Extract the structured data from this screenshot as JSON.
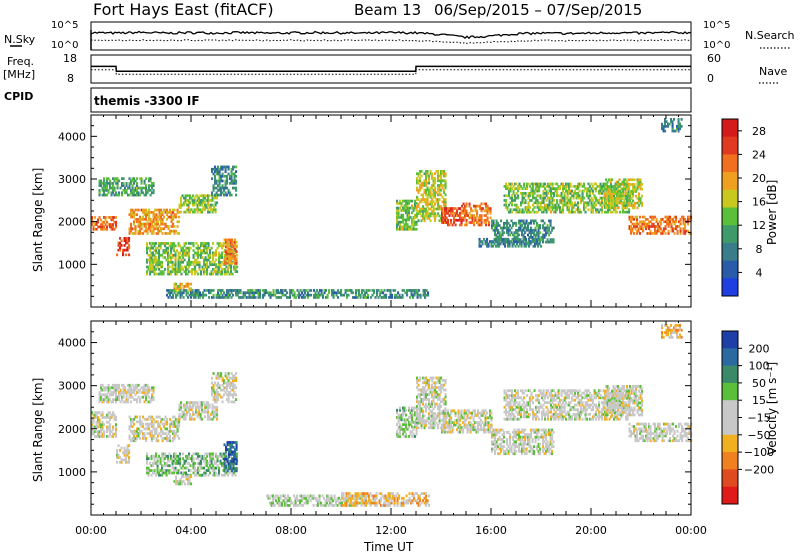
{
  "header": {
    "station": "Fort Hays East (fitACF)",
    "beam": "Beam 13",
    "dates": "06/Sep/2015 – 07/Sep/2015",
    "program": "themis -3300 IF"
  },
  "labels": {
    "nsky": "N.Sky",
    "nsearch": "N.Search",
    "freq": "Freq.",
    "freq_unit": "[MHz]",
    "nave": "Nave",
    "cpid": "CPID",
    "pow_exp_top": "10^5",
    "pow_exp_bot": "10^0"
  },
  "legend_colors": {
    "power": [
      "#1f3fe0",
      "#2a5ba8",
      "#3a7d8a",
      "#3f9a6a",
      "#5cbf3a",
      "#c8c81e",
      "#f0a020",
      "#f07020",
      "#e03a20",
      "#d41a1a"
    ],
    "velocity": [
      "#1f3fa8",
      "#2a6aa0",
      "#3a8a6a",
      "#5cbf3a",
      "#c8c8c8",
      "#c8c8c8",
      "#f0b020",
      "#f08020",
      "#e04a20",
      "#e01a1a"
    ]
  },
  "chart_data": [
    {
      "type": "line",
      "title": "N.Sky / N.Search",
      "ylabel": "N.Sky",
      "y2label": "N.Search",
      "ylim_text": [
        "10^0",
        "10^5"
      ],
      "x_hours": [
        0,
        1,
        2,
        3,
        4,
        5,
        6,
        7,
        8,
        9,
        10,
        11,
        12,
        13,
        14,
        15,
        16,
        17,
        18,
        19,
        20,
        21,
        22,
        23,
        24
      ],
      "series": [
        {
          "name": "N.Sky",
          "values": [
            0.62,
            0.6,
            0.63,
            0.6,
            0.62,
            0.61,
            0.62,
            0.6,
            0.61,
            0.62,
            0.61,
            0.6,
            0.62,
            0.61,
            0.55,
            0.45,
            0.5,
            0.58,
            0.6,
            0.59,
            0.6,
            0.62,
            0.6,
            0.62,
            0.62
          ]
        },
        {
          "name": "N.Search",
          "values": [
            0.35,
            0.34,
            0.35,
            0.34,
            0.35,
            0.34,
            0.35,
            0.34,
            0.35,
            0.34,
            0.35,
            0.34,
            0.35,
            0.34,
            0.3,
            0.25,
            0.28,
            0.32,
            0.34,
            0.33,
            0.34,
            0.35,
            0.34,
            0.35,
            0.35
          ]
        }
      ]
    },
    {
      "type": "line",
      "title": "Freq / Nave",
      "ylabel": "Freq. [MHz]",
      "y2label": "Nave",
      "yticks": [
        8,
        18
      ],
      "y2ticks": [
        0,
        60
      ],
      "x_hours": [
        0,
        1,
        1.01,
        12.99,
        13,
        24
      ],
      "series": [
        {
          "name": "Freq",
          "values": [
            14.2,
            14.2,
            12.0,
            12.0,
            14.2,
            14.2
          ]
        },
        {
          "name": "Nave",
          "values": [
            14,
            14,
            12,
            12,
            14,
            14
          ]
        }
      ]
    },
    {
      "type": "heatmap",
      "title": "Power",
      "ylabel": "Slant Range [km]",
      "xlabel": "Time UT",
      "xticks": [
        "00:00",
        "04:00",
        "08:00",
        "12:00",
        "16:00",
        "20:00",
        "00:00"
      ],
      "yticks": [
        1000,
        2000,
        3000,
        4000
      ],
      "ylim": [
        0,
        4500
      ],
      "xlim_hours": [
        0,
        24
      ],
      "colorbar_label": "Power [dB]",
      "colorbar_ticks": [
        4,
        8,
        12,
        16,
        20,
        24,
        28
      ],
      "colorbar_range": [
        0,
        30
      ],
      "bands": [
        {
          "t0": 0,
          "t1": 1.0,
          "r0": 1800,
          "r1": 2100,
          "v": 22
        },
        {
          "t0": 1.0,
          "t1": 1.5,
          "r0": 1200,
          "r1": 1600,
          "v": 26
        },
        {
          "t0": 1.5,
          "t1": 3.5,
          "r0": 1700,
          "r1": 2300,
          "v": 20
        },
        {
          "t0": 3.5,
          "t1": 5.0,
          "r0": 2200,
          "r1": 2600,
          "v": 14
        },
        {
          "t0": 0.3,
          "t1": 2.5,
          "r0": 2600,
          "r1": 3000,
          "v": 11
        },
        {
          "t0": 2.2,
          "t1": 5.8,
          "r0": 750,
          "r1": 1500,
          "v": 14
        },
        {
          "t0": 5.3,
          "t1": 5.8,
          "r0": 1000,
          "r1": 1600,
          "v": 22
        },
        {
          "t0": 3.3,
          "t1": 4.0,
          "r0": 350,
          "r1": 550,
          "v": 18
        },
        {
          "t0": 4.8,
          "t1": 5.8,
          "r0": 2600,
          "r1": 3300,
          "v": 9
        },
        {
          "t0": 12.2,
          "t1": 13.0,
          "r0": 1800,
          "r1": 2500,
          "v": 14
        },
        {
          "t0": 13.0,
          "t1": 14.2,
          "r0": 2000,
          "r1": 3200,
          "v": 16
        },
        {
          "t0": 14.0,
          "t1": 14.8,
          "r0": 1900,
          "r1": 2300,
          "v": 24
        },
        {
          "t0": 14.8,
          "t1": 16.0,
          "r0": 1900,
          "r1": 2400,
          "v": 22
        },
        {
          "t0": 16.0,
          "t1": 18.5,
          "r0": 1500,
          "r1": 2000,
          "v": 9
        },
        {
          "t0": 15.5,
          "t1": 18.0,
          "r0": 1400,
          "r1": 1600,
          "v": 8
        },
        {
          "t0": 16.5,
          "t1": 21.5,
          "r0": 2200,
          "r1": 2900,
          "v": 14
        },
        {
          "t0": 20.5,
          "t1": 22.0,
          "r0": 2300,
          "r1": 3000,
          "v": 16
        },
        {
          "t0": 21.5,
          "t1": 24.0,
          "r0": 1700,
          "r1": 2100,
          "v": 22
        },
        {
          "t0": 3.0,
          "t1": 13.5,
          "r0": 200,
          "r1": 400,
          "v": 9
        },
        {
          "t0": 22.8,
          "t1": 23.6,
          "r0": 4100,
          "r1": 4400,
          "v": 8
        }
      ]
    },
    {
      "type": "heatmap",
      "title": "Velocity",
      "ylabel": "Slant Range [km]",
      "xlabel": "Time UT",
      "xticks": [
        "00:00",
        "04:00",
        "08:00",
        "12:00",
        "16:00",
        "20:00",
        "00:00"
      ],
      "yticks": [
        1000,
        2000,
        3000,
        4000
      ],
      "ylim": [
        0,
        4500
      ],
      "xlim_hours": [
        0,
        24
      ],
      "colorbar_label": "Velocity [m s⁻¹]",
      "colorbar_ticks": [
        "200",
        "100",
        "50",
        "15",
        "−15",
        "−50",
        "−100",
        "−200"
      ],
      "colorbar_range": [
        -250,
        250
      ],
      "bands": [
        {
          "t0": 0,
          "t1": 1.0,
          "r0": 1800,
          "r1": 2400,
          "v": 0
        },
        {
          "t0": 1.0,
          "t1": 1.5,
          "r0": 1200,
          "r1": 1600,
          "v": 0
        },
        {
          "t0": 1.5,
          "t1": 3.5,
          "r0": 1700,
          "r1": 2300,
          "v": -5
        },
        {
          "t0": 3.5,
          "t1": 5.0,
          "r0": 2200,
          "r1": 2600,
          "v": 0
        },
        {
          "t0": 0.3,
          "t1": 2.5,
          "r0": 2600,
          "r1": 3000,
          "v": 5
        },
        {
          "t0": 2.2,
          "t1": 5.8,
          "r0": 900,
          "r1": 1400,
          "v": 60
        },
        {
          "t0": 5.3,
          "t1": 5.8,
          "r0": 1000,
          "r1": 1700,
          "v": 180
        },
        {
          "t0": 3.3,
          "t1": 4.0,
          "r0": 700,
          "r1": 900,
          "v": 0
        },
        {
          "t0": 4.8,
          "t1": 5.8,
          "r0": 2600,
          "r1": 3300,
          "v": 0
        },
        {
          "t0": 12.2,
          "t1": 13.0,
          "r0": 1800,
          "r1": 2500,
          "v": 40
        },
        {
          "t0": 13.0,
          "t1": 14.2,
          "r0": 2000,
          "r1": 3200,
          "v": 0
        },
        {
          "t0": 14.0,
          "t1": 16.0,
          "r0": 1900,
          "r1": 2400,
          "v": 0
        },
        {
          "t0": 16.0,
          "t1": 18.5,
          "r0": 1400,
          "r1": 2000,
          "v": 0
        },
        {
          "t0": 16.5,
          "t1": 21.5,
          "r0": 2200,
          "r1": 2900,
          "v": 0
        },
        {
          "t0": 20.5,
          "t1": 22.0,
          "r0": 2300,
          "r1": 3000,
          "v": 0
        },
        {
          "t0": 21.5,
          "t1": 24.0,
          "r0": 1700,
          "r1": 2100,
          "v": 0
        },
        {
          "t0": 7.0,
          "t1": 11.0,
          "r0": 200,
          "r1": 450,
          "v": 20
        },
        {
          "t0": 10.0,
          "t1": 13.5,
          "r0": 200,
          "r1": 500,
          "v": -60
        },
        {
          "t0": 22.8,
          "t1": 23.6,
          "r0": 4100,
          "r1": 4400,
          "v": -60
        }
      ]
    }
  ]
}
